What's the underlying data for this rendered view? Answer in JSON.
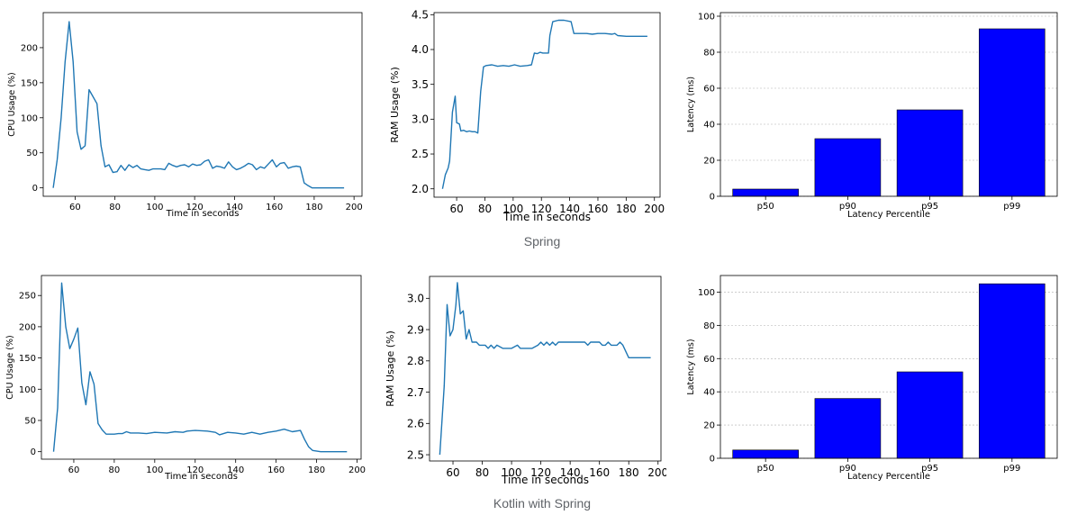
{
  "captions": {
    "spring": "Spring",
    "kotlin": "Kotlin with Spring"
  },
  "chart_data": [
    {
      "id": "spring-cpu",
      "type": "line",
      "title": "",
      "xlabel": "Time in seconds",
      "ylabel": "CPU Usage (%)",
      "xlim": [
        44,
        204
      ],
      "ylim": [
        -12,
        250
      ],
      "xticks": [
        60,
        80,
        100,
        120,
        140,
        160,
        180,
        200
      ],
      "yticks": [
        0,
        50,
        100,
        150,
        200
      ],
      "color": "#1f77b4",
      "series": [
        {
          "name": "CPU",
          "points": [
            [
              49,
              0
            ],
            [
              51,
              40
            ],
            [
              53,
              100
            ],
            [
              55,
              180
            ],
            [
              57,
              237
            ],
            [
              59,
              180
            ],
            [
              61,
              80
            ],
            [
              63,
              55
            ],
            [
              65,
              60
            ],
            [
              67,
              140
            ],
            [
              69,
              130
            ],
            [
              71,
              120
            ],
            [
              73,
              60
            ],
            [
              75,
              30
            ],
            [
              77,
              33
            ],
            [
              79,
              22
            ],
            [
              81,
              23
            ],
            [
              83,
              32
            ],
            [
              85,
              25
            ],
            [
              87,
              33
            ],
            [
              89,
              29
            ],
            [
              91,
              32
            ],
            [
              93,
              27
            ],
            [
              95,
              26
            ],
            [
              97,
              25
            ],
            [
              99,
              27
            ],
            [
              101,
              27
            ],
            [
              103,
              27
            ],
            [
              105,
              26
            ],
            [
              107,
              35
            ],
            [
              109,
              32
            ],
            [
              111,
              30
            ],
            [
              113,
              32
            ],
            [
              115,
              33
            ],
            [
              117,
              30
            ],
            [
              119,
              34
            ],
            [
              121,
              32
            ],
            [
              123,
              33
            ],
            [
              125,
              38
            ],
            [
              127,
              40
            ],
            [
              129,
              28
            ],
            [
              131,
              31
            ],
            [
              133,
              30
            ],
            [
              135,
              28
            ],
            [
              137,
              37
            ],
            [
              139,
              30
            ],
            [
              141,
              26
            ],
            [
              143,
              28
            ],
            [
              145,
              31
            ],
            [
              147,
              35
            ],
            [
              149,
              33
            ],
            [
              151,
              26
            ],
            [
              153,
              30
            ],
            [
              155,
              28
            ],
            [
              157,
              34
            ],
            [
              159,
              40
            ],
            [
              161,
              30
            ],
            [
              163,
              35
            ],
            [
              165,
              36
            ],
            [
              167,
              28
            ],
            [
              169,
              30
            ],
            [
              171,
              31
            ],
            [
              173,
              30
            ],
            [
              175,
              7
            ],
            [
              177,
              3
            ],
            [
              179,
              0
            ],
            [
              185,
              0
            ],
            [
              195,
              0
            ]
          ]
        }
      ]
    },
    {
      "id": "spring-ram",
      "type": "line",
      "title": "",
      "xlabel": "Time in seconds",
      "ylabel": "RAM Usage (%)",
      "xlim": [
        44,
        204
      ],
      "ylim": [
        1.88,
        4.53
      ],
      "xticks": [
        60,
        80,
        100,
        120,
        140,
        160,
        180,
        200
      ],
      "yticks": [
        2.0,
        2.5,
        3.0,
        3.5,
        4.0,
        4.5
      ],
      "ytick_labels": [
        "2.0",
        "2.5",
        "3.0",
        "3.5",
        "4.0",
        "4.5"
      ],
      "color": "#1f77b4",
      "series": [
        {
          "name": "RAM",
          "points": [
            [
              50,
              2.0
            ],
            [
              52,
              2.2
            ],
            [
              54,
              2.3
            ],
            [
              55,
              2.4
            ],
            [
              57,
              3.1
            ],
            [
              59,
              3.33
            ],
            [
              60,
              2.95
            ],
            [
              62,
              2.93
            ],
            [
              63,
              2.83
            ],
            [
              65,
              2.84
            ],
            [
              67,
              2.82
            ],
            [
              69,
              2.83
            ],
            [
              71,
              2.82
            ],
            [
              73,
              2.82
            ],
            [
              75,
              2.8
            ],
            [
              77,
              3.4
            ],
            [
              79,
              3.75
            ],
            [
              81,
              3.77
            ],
            [
              85,
              3.78
            ],
            [
              89,
              3.76
            ],
            [
              93,
              3.77
            ],
            [
              97,
              3.76
            ],
            [
              101,
              3.78
            ],
            [
              105,
              3.76
            ],
            [
              110,
              3.77
            ],
            [
              113,
              3.78
            ],
            [
              115,
              3.95
            ],
            [
              117,
              3.94
            ],
            [
              119,
              3.96
            ],
            [
              121,
              3.95
            ],
            [
              125,
              3.95
            ],
            [
              126,
              4.2
            ],
            [
              128,
              4.4
            ],
            [
              132,
              4.42
            ],
            [
              136,
              4.42
            ],
            [
              141,
              4.4
            ],
            [
              143,
              4.23
            ],
            [
              148,
              4.23
            ],
            [
              152,
              4.23
            ],
            [
              156,
              4.22
            ],
            [
              160,
              4.23
            ],
            [
              165,
              4.23
            ],
            [
              170,
              4.22
            ],
            [
              172,
              4.23
            ],
            [
              174,
              4.2
            ],
            [
              180,
              4.19
            ],
            [
              195,
              4.19
            ]
          ]
        }
      ]
    },
    {
      "id": "spring-latency",
      "type": "bar",
      "title": "",
      "xlabel": "Latency Percentile",
      "ylabel": "Latency (ms)",
      "ylim": [
        0,
        102
      ],
      "yticks": [
        0,
        20,
        40,
        60,
        80,
        100
      ],
      "grid": "y",
      "color": "#0000ff",
      "categories": [
        "p50",
        "p90",
        "p95",
        "p99"
      ],
      "values": [
        4,
        32,
        48,
        93
      ]
    },
    {
      "id": "kotlin-cpu",
      "type": "line",
      "title": "",
      "xlabel": "Time in seconds",
      "ylabel": "CPU Usage (%)",
      "xlim": [
        44,
        202
      ],
      "ylim": [
        -12,
        282
      ],
      "xticks": [
        60,
        80,
        100,
        120,
        140,
        160,
        180,
        200
      ],
      "yticks": [
        0,
        50,
        100,
        150,
        200,
        250
      ],
      "color": "#1f77b4",
      "series": [
        {
          "name": "CPU",
          "points": [
            [
              50,
              0
            ],
            [
              52,
              70
            ],
            [
              54,
              270
            ],
            [
              56,
              200
            ],
            [
              58,
              165
            ],
            [
              60,
              180
            ],
            [
              62,
              198
            ],
            [
              64,
              110
            ],
            [
              66,
              75
            ],
            [
              68,
              128
            ],
            [
              70,
              108
            ],
            [
              72,
              45
            ],
            [
              74,
              35
            ],
            [
              76,
              28
            ],
            [
              80,
              28
            ],
            [
              82,
              29
            ],
            [
              84,
              29
            ],
            [
              86,
              32
            ],
            [
              88,
              30
            ],
            [
              92,
              30
            ],
            [
              96,
              29
            ],
            [
              100,
              31
            ],
            [
              106,
              30
            ],
            [
              110,
              32
            ],
            [
              114,
              31
            ],
            [
              116,
              33
            ],
            [
              120,
              34
            ],
            [
              126,
              33
            ],
            [
              130,
              31
            ],
            [
              132,
              27
            ],
            [
              136,
              31
            ],
            [
              140,
              30
            ],
            [
              144,
              28
            ],
            [
              148,
              31
            ],
            [
              152,
              28
            ],
            [
              156,
              31
            ],
            [
              160,
              33
            ],
            [
              164,
              36
            ],
            [
              168,
              32
            ],
            [
              172,
              34
            ],
            [
              174,
              20
            ],
            [
              176,
              8
            ],
            [
              178,
              2
            ],
            [
              182,
              0
            ],
            [
              195,
              0
            ]
          ]
        }
      ]
    },
    {
      "id": "kotlin-ram",
      "type": "line",
      "title": "",
      "xlabel": "Time in seconds",
      "ylabel": "RAM Usage (%)",
      "xlim": [
        44,
        202
      ],
      "ylim": [
        2.48,
        3.07
      ],
      "xticks": [
        60,
        80,
        100,
        120,
        140,
        160,
        180,
        200
      ],
      "yticks": [
        2.5,
        2.6,
        2.7,
        2.8,
        2.9,
        3.0
      ],
      "ytick_labels": [
        "2.5",
        "2.6",
        "2.7",
        "2.8",
        "2.9",
        "3.0"
      ],
      "color": "#1f77b4",
      "series": [
        {
          "name": "RAM",
          "points": [
            [
              51,
              2.5
            ],
            [
              54,
              2.72
            ],
            [
              56,
              2.98
            ],
            [
              58,
              2.88
            ],
            [
              60,
              2.9
            ],
            [
              62,
              2.98
            ],
            [
              63,
              3.05
            ],
            [
              65,
              2.95
            ],
            [
              67,
              2.96
            ],
            [
              69,
              2.87
            ],
            [
              71,
              2.9
            ],
            [
              73,
              2.86
            ],
            [
              76,
              2.86
            ],
            [
              78,
              2.85
            ],
            [
              82,
              2.85
            ],
            [
              84,
              2.84
            ],
            [
              86,
              2.85
            ],
            [
              88,
              2.84
            ],
            [
              90,
              2.85
            ],
            [
              94,
              2.84
            ],
            [
              100,
              2.84
            ],
            [
              104,
              2.85
            ],
            [
              106,
              2.84
            ],
            [
              114,
              2.84
            ],
            [
              118,
              2.85
            ],
            [
              120,
              2.86
            ],
            [
              122,
              2.85
            ],
            [
              124,
              2.86
            ],
            [
              126,
              2.85
            ],
            [
              128,
              2.86
            ],
            [
              130,
              2.85
            ],
            [
              132,
              2.86
            ],
            [
              134,
              2.86
            ],
            [
              150,
              2.86
            ],
            [
              152,
              2.85
            ],
            [
              154,
              2.86
            ],
            [
              160,
              2.86
            ],
            [
              162,
              2.85
            ],
            [
              164,
              2.85
            ],
            [
              166,
              2.86
            ],
            [
              168,
              2.85
            ],
            [
              172,
              2.85
            ],
            [
              174,
              2.86
            ],
            [
              176,
              2.85
            ],
            [
              180,
              2.81
            ],
            [
              195,
              2.81
            ]
          ]
        }
      ]
    },
    {
      "id": "kotlin-latency",
      "type": "bar",
      "title": "",
      "xlabel": "Latency Percentile",
      "ylabel": "Latency (ms)",
      "ylim": [
        0,
        110
      ],
      "yticks": [
        0,
        20,
        40,
        60,
        80,
        100
      ],
      "grid": "y",
      "color": "#0000ff",
      "categories": [
        "p50",
        "p90",
        "p95",
        "p99"
      ],
      "values": [
        5,
        36,
        52,
        105
      ]
    }
  ]
}
